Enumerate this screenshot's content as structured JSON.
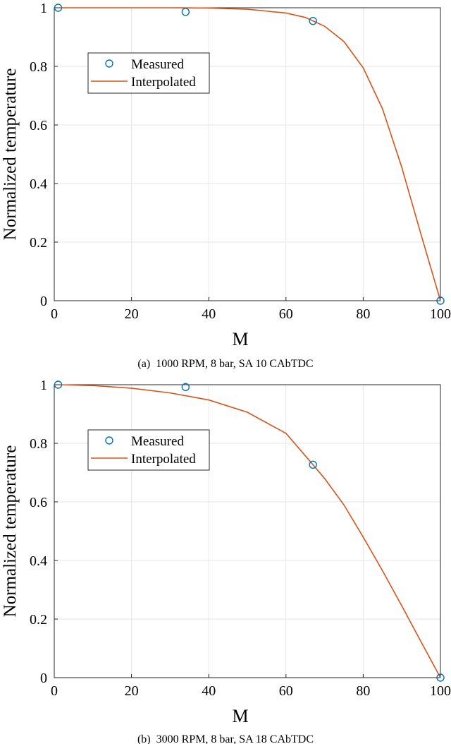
{
  "colors": {
    "measured": "#0072BD",
    "interpolated": "#D95319",
    "grid": "#e6e6e6",
    "axis": "#262626"
  },
  "chart_data": [
    {
      "type": "line",
      "panel_label": "(a)",
      "caption": "1000 RPM, 8 bar, SA 10 CAbTDC",
      "xlabel": "M",
      "ylabel": "Normalized temperature",
      "xlim": [
        0,
        100
      ],
      "ylim": [
        0,
        1
      ],
      "xticks": [
        0,
        20,
        40,
        60,
        80,
        100
      ],
      "yticks": [
        0,
        0.2,
        0.4,
        0.6,
        0.8,
        1
      ],
      "ytick_labels": [
        "0",
        "0.2",
        "0.4",
        "0.6",
        "0.8",
        "1"
      ],
      "grid": true,
      "legend_position": "upper-left",
      "series": [
        {
          "name": "Measured",
          "style": "markers",
          "marker": "circle",
          "x": [
            1,
            34,
            67,
            100
          ],
          "y": [
            1.0,
            0.986,
            0.955,
            0.0
          ]
        },
        {
          "name": "Interpolated",
          "style": "line",
          "x": [
            1,
            10,
            20,
            30,
            40,
            50,
            60,
            65,
            70,
            75,
            80,
            85,
            90,
            95,
            100
          ],
          "y": [
            1.0,
            1.0,
            1.0,
            1.0,
            0.999,
            0.995,
            0.982,
            0.967,
            0.937,
            0.885,
            0.795,
            0.655,
            0.455,
            0.225,
            0.0
          ]
        }
      ]
    },
    {
      "type": "line",
      "panel_label": "(b)",
      "caption": "3000 RPM, 8 bar, SA 18 CAbTDC",
      "xlabel": "M",
      "ylabel": "Normalized temperature",
      "xlim": [
        0,
        100
      ],
      "ylim": [
        0,
        1
      ],
      "xticks": [
        0,
        20,
        40,
        60,
        80,
        100
      ],
      "yticks": [
        0,
        0.2,
        0.4,
        0.6,
        0.8,
        1
      ],
      "ytick_labels": [
        "0",
        "0.2",
        "0.4",
        "0.6",
        "0.8",
        "1"
      ],
      "grid": true,
      "legend_position": "upper-left",
      "series": [
        {
          "name": "Measured",
          "style": "markers",
          "marker": "circle",
          "x": [
            1,
            34,
            67,
            100
          ],
          "y": [
            1.0,
            0.992,
            0.727,
            0.0
          ]
        },
        {
          "name": "Interpolated",
          "style": "line",
          "x": [
            1,
            10,
            20,
            30,
            40,
            50,
            60,
            67,
            70,
            75,
            80,
            85,
            90,
            95,
            100
          ],
          "y": [
            1.0,
            0.997,
            0.988,
            0.972,
            0.948,
            0.906,
            0.834,
            0.727,
            0.68,
            0.59,
            0.48,
            0.365,
            0.245,
            0.122,
            0.0
          ]
        }
      ]
    }
  ]
}
